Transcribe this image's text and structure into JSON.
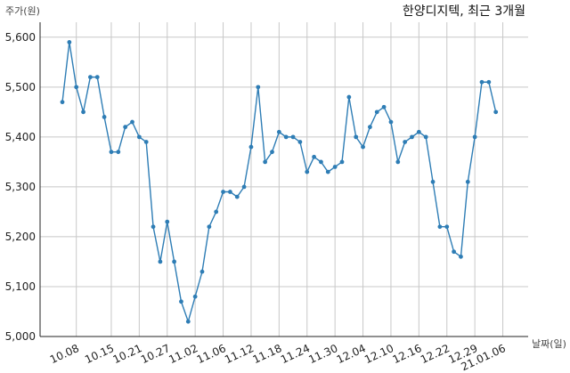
{
  "chart_data": {
    "type": "line",
    "title": "한양디지텍, 최근 3개월",
    "ylabel": "주가(원)",
    "xlabel": "날짜(일)",
    "ylim": [
      5000,
      5630
    ],
    "yticks": [
      5000,
      5100,
      5200,
      5300,
      5400,
      5500,
      5600
    ],
    "ytick_labels": [
      "5,000",
      "5,100",
      "5,200",
      "5,300",
      "5,400",
      "5,500",
      "5,600"
    ],
    "xtick_labels": [
      "10.08",
      "10.15",
      "10.21",
      "10.27",
      "11.02",
      "11.06",
      "11.12",
      "11.18",
      "11.24",
      "11.30",
      "12.04",
      "12.10",
      "12.16",
      "12.22",
      "12.29",
      "21.01.06"
    ],
    "xtick_index": [
      2,
      7,
      11,
      15,
      19,
      23,
      27,
      31,
      35,
      39,
      43,
      47,
      51,
      55,
      59,
      63
    ],
    "grid": true,
    "line_color": "#2e7db5",
    "series": [
      {
        "values": [
          5470,
          5590,
          5500,
          5450,
          5520,
          5520,
          5440,
          5370,
          5370,
          5420,
          5430,
          5400,
          5390,
          5220,
          5150,
          5230,
          5150,
          5070,
          5030,
          5080,
          5130,
          5220,
          5250,
          5290,
          5290,
          5280,
          5300,
          5380,
          5500,
          5350,
          5370,
          5410,
          5400,
          5400,
          5390,
          5330,
          5360,
          5350,
          5330,
          5340,
          5350,
          5480,
          5400,
          5380,
          5420,
          5450,
          5460,
          5430,
          5350,
          5390,
          5400,
          5410,
          5400,
          5310,
          5220,
          5220,
          5170,
          5160,
          5310,
          5400,
          5510,
          5510,
          5450
        ]
      }
    ]
  }
}
